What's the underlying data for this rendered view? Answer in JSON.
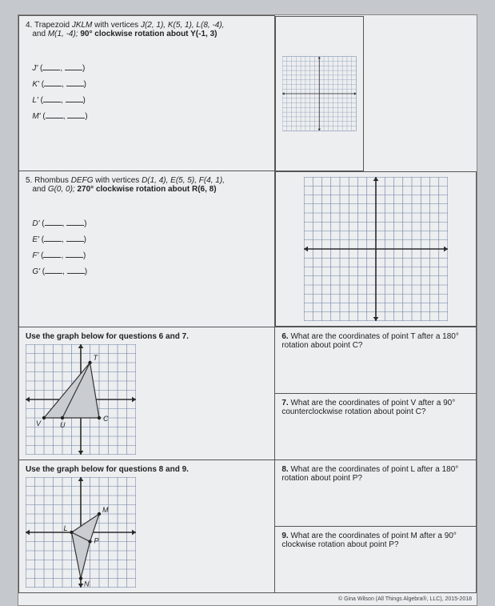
{
  "problem4": {
    "number": "4.",
    "text_prefix": "Trapezoid ",
    "shape_name": "JKLM",
    "text_mid": " with vertices ",
    "vertices": "J(2, 1), K(5, 1), L(8, -4),",
    "line2_prefix": "and ",
    "vertex_last": "M(1, -4); ",
    "rotation": "90° clockwise rotation about Y(-1, 3)",
    "answers": {
      "a": "J'",
      "b": "K'",
      "c": "L'",
      "d": "M'"
    }
  },
  "problem5": {
    "number": "5.",
    "text_prefix": "Rhombus ",
    "shape_name": "DEFG",
    "text_mid": " with vertices ",
    "vertices": "D(1, 4), E(5, 5), F(4, 1),",
    "line2_prefix": "and ",
    "vertex_last": "G(0, 0); ",
    "rotation": "270° clockwise rotation about R(6, 8)",
    "answers": {
      "a": "D'",
      "b": "E'",
      "c": "F'",
      "d": "G'"
    }
  },
  "graph67_title": "Use the graph below for questions 6 and 7.",
  "graph89_title": "Use the graph below for questions 8 and 9.",
  "q6": {
    "num": "6.",
    "text": "What are the coordinates of point T after a 180° rotation about point C?"
  },
  "q7": {
    "num": "7.",
    "text": "What are the coordinates of point V after a 90° counterclockwise rotation about point C?"
  },
  "q8": {
    "num": "8.",
    "text": "What are the coordinates of point L after a 180° rotation about point P?"
  },
  "q9": {
    "num": "9.",
    "text": "What are the coordinates of point M after a 90° clockwise rotation about point P?"
  },
  "footer": "© Gina Wilson (All Things Algebra®, LLC), 2015-2018",
  "grid": {
    "bg": "#eceef0",
    "line_minor": "#6a7fa0",
    "line_axis": "#2a2a2a",
    "cells": 16,
    "size_large": 180,
    "size_small": 138
  },
  "fig67": {
    "points": {
      "T": [
        1,
        4
      ],
      "V": [
        -4,
        -2
      ],
      "U": [
        -2,
        -2
      ],
      "C": [
        2,
        -2
      ]
    },
    "poly_fill": "#c9cdd2",
    "poly_stroke": "#333",
    "label_color": "#222"
  },
  "fig89": {
    "points": {
      "M": [
        2,
        2
      ],
      "L": [
        -1,
        0
      ],
      "P": [
        1,
        -1
      ],
      "N": [
        0,
        -5
      ]
    },
    "poly_fill": "#c9cdd2",
    "poly_stroke": "#333",
    "label_color": "#222"
  }
}
